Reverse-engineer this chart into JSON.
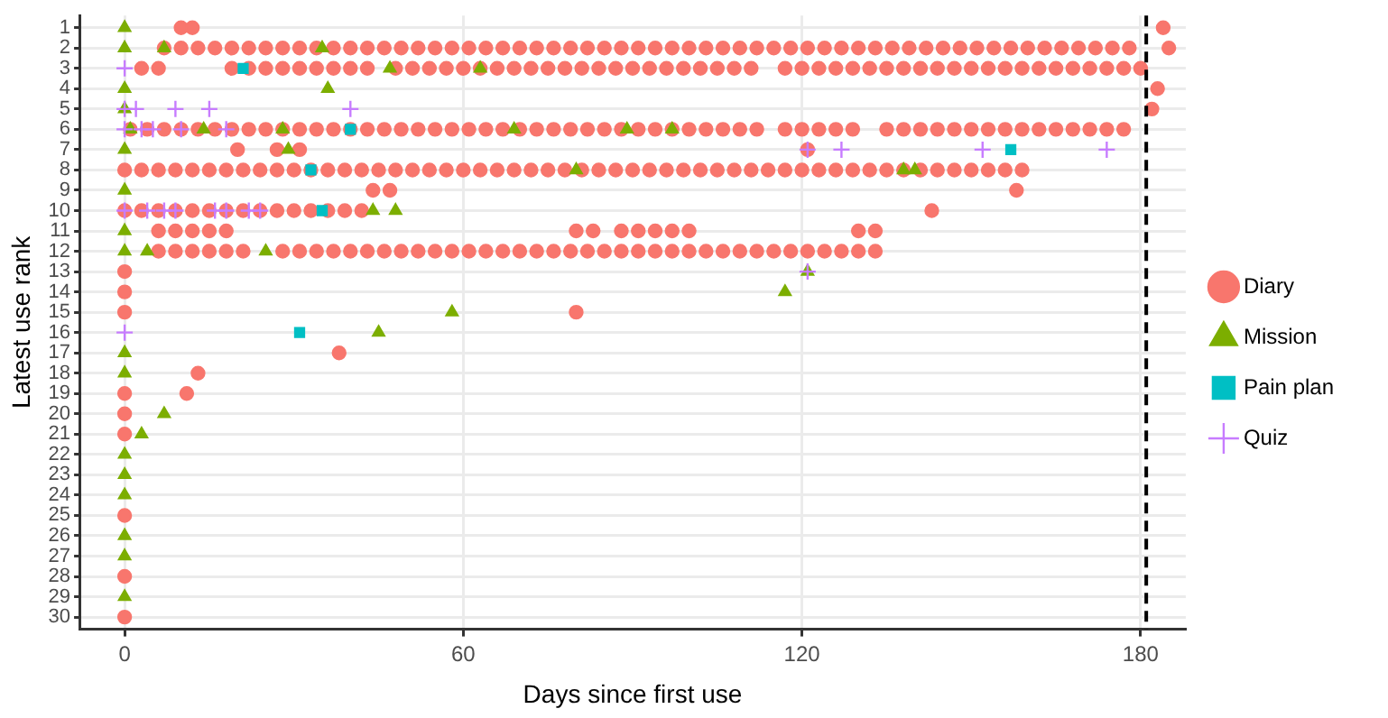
{
  "chart_data": {
    "type": "scatter",
    "xlabel": "Days since first use",
    "ylabel": "Latest use rank",
    "xlim": [
      -8,
      188
    ],
    "xticks": [
      0,
      60,
      120,
      180
    ],
    "ylim": [
      30.6,
      0.4
    ],
    "yticks": [
      1,
      2,
      3,
      4,
      5,
      6,
      7,
      8,
      9,
      10,
      11,
      12,
      13,
      14,
      15,
      16,
      17,
      18,
      19,
      20,
      21,
      22,
      23,
      24,
      25,
      26,
      27,
      28,
      29,
      30
    ],
    "grid": true,
    "legend": "right",
    "ref_lines": [
      {
        "axis": "x",
        "value": 181,
        "color": "#000000",
        "line_style": "dashed"
      }
    ],
    "series": [
      {
        "name": "Diary",
        "color": "#f8766d",
        "marker": "circle",
        "x": [
          10,
          12,
          184,
          7,
          10,
          13,
          16,
          19,
          22,
          25,
          28,
          31,
          34,
          37,
          40,
          43,
          46,
          49,
          52,
          55,
          58,
          61,
          64,
          67,
          70,
          73,
          76,
          79,
          82,
          85,
          88,
          91,
          94,
          97,
          100,
          103,
          106,
          109,
          112,
          115,
          118,
          121,
          124,
          127,
          130,
          133,
          136,
          139,
          142,
          145,
          148,
          151,
          154,
          157,
          160,
          163,
          166,
          169,
          172,
          175,
          178,
          185,
          3,
          6,
          19,
          22,
          25,
          28,
          31,
          34,
          37,
          40,
          43,
          48,
          51,
          54,
          57,
          60,
          63,
          66,
          69,
          72,
          75,
          78,
          81,
          84,
          87,
          90,
          93,
          96,
          99,
          102,
          105,
          108,
          111,
          117,
          120,
          123,
          126,
          129,
          132,
          135,
          138,
          141,
          144,
          147,
          150,
          153,
          156,
          159,
          162,
          165,
          168,
          171,
          174,
          177,
          180,
          183,
          182,
          1,
          4,
          7,
          10,
          13,
          16,
          19,
          22,
          25,
          28,
          31,
          34,
          37,
          40,
          43,
          46,
          49,
          52,
          55,
          58,
          61,
          64,
          67,
          70,
          73,
          76,
          79,
          82,
          85,
          88,
          91,
          94,
          97,
          100,
          103,
          106,
          109,
          112,
          117,
          120,
          123,
          126,
          129,
          135,
          138,
          141,
          144,
          147,
          150,
          153,
          156,
          159,
          162,
          165,
          168,
          171,
          174,
          177,
          20,
          27,
          31,
          121,
          0,
          3,
          6,
          9,
          12,
          15,
          18,
          21,
          24,
          27,
          30,
          33,
          36,
          39,
          42,
          45,
          48,
          51,
          54,
          57,
          60,
          63,
          66,
          69,
          72,
          75,
          78,
          81,
          84,
          87,
          90,
          93,
          96,
          99,
          102,
          105,
          108,
          111,
          114,
          117,
          120,
          123,
          126,
          129,
          132,
          135,
          138,
          141,
          144,
          147,
          150,
          153,
          156,
          159,
          44,
          47,
          158,
          0,
          3,
          6,
          9,
          12,
          15,
          18,
          21,
          24,
          27,
          30,
          33,
          36,
          39,
          42,
          143,
          6,
          9,
          12,
          15,
          18,
          80,
          83,
          88,
          91,
          94,
          97,
          100,
          130,
          133,
          6,
          9,
          12,
          15,
          18,
          21,
          28,
          31,
          34,
          37,
          40,
          43,
          46,
          49,
          52,
          55,
          58,
          61,
          64,
          67,
          70,
          73,
          76,
          79,
          82,
          85,
          88,
          91,
          94,
          97,
          100,
          103,
          106,
          109,
          112,
          115,
          118,
          121,
          124,
          127,
          130,
          133,
          0,
          0,
          0,
          80,
          38,
          13,
          0,
          11,
          0,
          0,
          0,
          0,
          0
        ],
        "values": [
          1,
          1,
          1,
          2,
          2,
          2,
          2,
          2,
          2,
          2,
          2,
          2,
          2,
          2,
          2,
          2,
          2,
          2,
          2,
          2,
          2,
          2,
          2,
          2,
          2,
          2,
          2,
          2,
          2,
          2,
          2,
          2,
          2,
          2,
          2,
          2,
          2,
          2,
          2,
          2,
          2,
          2,
          2,
          2,
          2,
          2,
          2,
          2,
          2,
          2,
          2,
          2,
          2,
          2,
          2,
          2,
          2,
          2,
          2,
          2,
          2,
          2,
          3,
          3,
          3,
          3,
          3,
          3,
          3,
          3,
          3,
          3,
          3,
          3,
          3,
          3,
          3,
          3,
          3,
          3,
          3,
          3,
          3,
          3,
          3,
          3,
          3,
          3,
          3,
          3,
          3,
          3,
          3,
          3,
          3,
          3,
          3,
          3,
          3,
          3,
          3,
          3,
          3,
          3,
          3,
          3,
          3,
          3,
          3,
          3,
          3,
          3,
          3,
          3,
          3,
          3,
          3,
          4,
          5,
          6,
          6,
          6,
          6,
          6,
          6,
          6,
          6,
          6,
          6,
          6,
          6,
          6,
          6,
          6,
          6,
          6,
          6,
          6,
          6,
          6,
          6,
          6,
          6,
          6,
          6,
          6,
          6,
          6,
          6,
          6,
          6,
          6,
          6,
          6,
          6,
          6,
          6,
          6,
          6,
          6,
          6,
          6,
          6,
          6,
          6,
          6,
          6,
          6,
          6,
          6,
          6,
          6,
          6,
          6,
          6,
          6,
          6,
          7,
          7,
          7,
          7,
          8,
          8,
          8,
          8,
          8,
          8,
          8,
          8,
          8,
          8,
          8,
          8,
          8,
          8,
          8,
          8,
          8,
          8,
          8,
          8,
          8,
          8,
          8,
          8,
          8,
          8,
          8,
          8,
          8,
          8,
          8,
          8,
          8,
          8,
          8,
          8,
          8,
          8,
          8,
          8,
          8,
          8,
          8,
          8,
          8,
          8,
          8,
          8,
          8,
          8,
          8,
          8,
          8,
          8,
          9,
          9,
          9,
          10,
          10,
          10,
          10,
          10,
          10,
          10,
          10,
          10,
          10,
          10,
          10,
          10,
          10,
          10,
          10,
          11,
          11,
          11,
          11,
          11,
          11,
          11,
          11,
          11,
          11,
          11,
          11,
          11,
          11,
          12,
          12,
          12,
          12,
          12,
          12,
          12,
          12,
          12,
          12,
          12,
          12,
          12,
          12,
          12,
          12,
          12,
          12,
          12,
          12,
          12,
          12,
          12,
          12,
          12,
          12,
          12,
          12,
          12,
          12,
          12,
          12,
          12,
          12,
          12,
          12,
          12,
          12,
          12,
          12,
          12,
          12,
          13,
          14,
          15,
          15,
          17,
          18,
          19,
          19,
          20,
          21,
          25,
          28,
          30
        ]
      },
      {
        "name": "Mission",
        "color": "#7cae00",
        "marker": "triangle",
        "x": [
          0,
          0,
          7,
          35,
          47,
          63,
          0,
          36,
          0,
          1,
          14,
          28,
          69,
          89,
          97,
          0,
          29,
          80,
          138,
          140,
          0,
          44,
          48,
          0,
          0,
          4,
          25,
          121,
          117,
          58,
          45,
          0,
          0,
          7,
          3,
          0,
          0,
          0,
          0,
          0,
          0
        ],
        "values": [
          1,
          2,
          2,
          2,
          3,
          3,
          4,
          4,
          5,
          6,
          6,
          6,
          6,
          6,
          6,
          7,
          7,
          8,
          8,
          8,
          9,
          10,
          10,
          11,
          12,
          12,
          12,
          13,
          14,
          15,
          16,
          17,
          18,
          20,
          21,
          22,
          23,
          24,
          26,
          27,
          29
        ]
      },
      {
        "name": "Pain plan",
        "color": "#00bfc4",
        "marker": "square",
        "x": [
          21,
          40,
          157,
          33,
          35,
          31
        ],
        "values": [
          3,
          6,
          7,
          8,
          10,
          16
        ]
      },
      {
        "name": "Quiz",
        "color": "#c77cff",
        "marker": "cross",
        "x": [
          0,
          0,
          2,
          9,
          15,
          40,
          0,
          3,
          5,
          10,
          18,
          121,
          127,
          152,
          174,
          0,
          4,
          7,
          9,
          16,
          18,
          22,
          24,
          121,
          0
        ],
        "values": [
          3,
          5,
          5,
          5,
          5,
          5,
          6,
          6,
          6,
          6,
          6,
          7,
          7,
          7,
          7,
          10,
          10,
          10,
          10,
          10,
          10,
          10,
          10,
          13,
          16
        ]
      }
    ]
  }
}
